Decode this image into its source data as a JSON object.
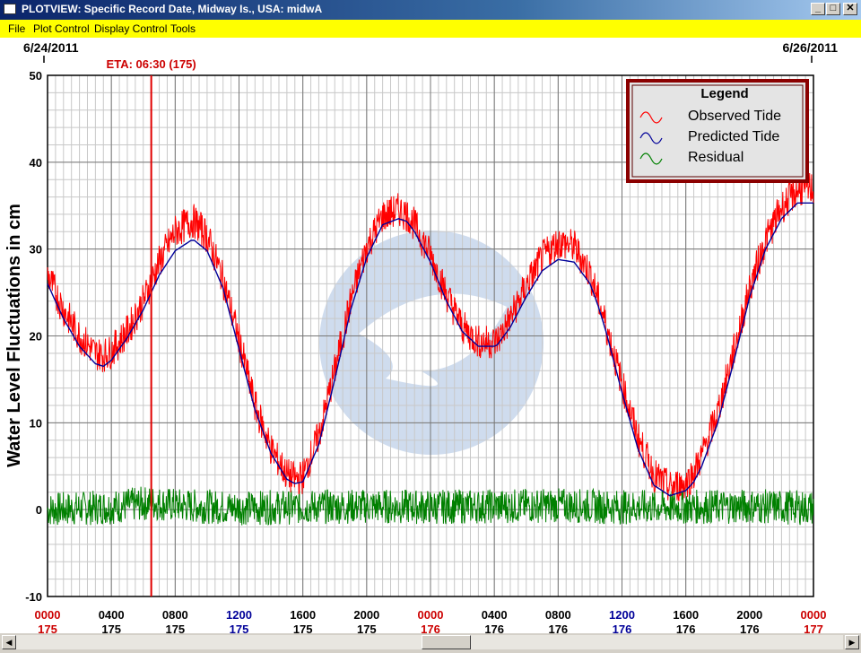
{
  "window": {
    "title": "PLOTVIEW: Specific Record Date, Midway Is., USA: midwA",
    "minimize_label": "_",
    "maximize_label": "□",
    "close_label": "✕"
  },
  "menu": {
    "items": [
      "File",
      "Plot Control",
      "Display Control",
      "Tools"
    ]
  },
  "scrollbar": {
    "left_arrow": "◀",
    "right_arrow": "▶"
  },
  "chart_data": {
    "type": "line",
    "ylabel": "Water Level Fluctuations in cm",
    "xlim": [
      0,
      48
    ],
    "ylim": [
      -10,
      50
    ],
    "y_ticks": [
      -10,
      0,
      10,
      20,
      30,
      40,
      50
    ],
    "y_minor_step": 2,
    "x_minor_step": 0.5,
    "grid": true,
    "start_date_label": "6/24/2011",
    "end_date_label": "6/26/2011",
    "eta_label": "ETA: 06:30 (175)",
    "eta_x": 6.5,
    "eta_color": "#e00000",
    "x_ticks": [
      {
        "x": 0,
        "time": "0000",
        "day": "175",
        "time_color": "#cc0000",
        "day_color": "#cc0000"
      },
      {
        "x": 4,
        "time": "0400",
        "day": "175",
        "time_color": "#000000",
        "day_color": "#000000"
      },
      {
        "x": 8,
        "time": "0800",
        "day": "175",
        "time_color": "#000000",
        "day_color": "#000000"
      },
      {
        "x": 12,
        "time": "1200",
        "day": "175",
        "time_color": "#000099",
        "day_color": "#000099"
      },
      {
        "x": 16,
        "time": "1600",
        "day": "175",
        "time_color": "#000000",
        "day_color": "#000000"
      },
      {
        "x": 20,
        "time": "2000",
        "day": "175",
        "time_color": "#000000",
        "day_color": "#000000"
      },
      {
        "x": 24,
        "time": "0000",
        "day": "176",
        "time_color": "#cc0000",
        "day_color": "#cc0000"
      },
      {
        "x": 28,
        "time": "0400",
        "day": "176",
        "time_color": "#000000",
        "day_color": "#000000"
      },
      {
        "x": 32,
        "time": "0800",
        "day": "176",
        "time_color": "#000000",
        "day_color": "#000000"
      },
      {
        "x": 36,
        "time": "1200",
        "day": "176",
        "time_color": "#000099",
        "day_color": "#000099"
      },
      {
        "x": 40,
        "time": "1600",
        "day": "176",
        "time_color": "#000000",
        "day_color": "#000000"
      },
      {
        "x": 44,
        "time": "2000",
        "day": "176",
        "time_color": "#000000",
        "day_color": "#000000"
      },
      {
        "x": 48,
        "time": "0000",
        "day": "177",
        "time_color": "#cc0000",
        "day_color": "#cc0000"
      }
    ],
    "legend": {
      "title": "Legend",
      "position": "top-right",
      "entries": [
        {
          "name": "Observed Tide",
          "color": "#ff0000"
        },
        {
          "name": "Predicted Tide",
          "color": "#000099"
        },
        {
          "name": "Residual",
          "color": "#008000"
        }
      ]
    },
    "series": [
      {
        "name": "Predicted Tide",
        "color": "#000099",
        "x": [
          0,
          1,
          2,
          3,
          3.5,
          4,
          5,
          6,
          7,
          8,
          9,
          9.2,
          10,
          11,
          12,
          13,
          14,
          15,
          15.5,
          16,
          17,
          18,
          19,
          20,
          21,
          22,
          22.5,
          23,
          24,
          25,
          26,
          27,
          28,
          28.2,
          29,
          30,
          31,
          32,
          33,
          34,
          34.5,
          35,
          36,
          37,
          38,
          39,
          40,
          40.5,
          41,
          42,
          43,
          44,
          45,
          46,
          47,
          48
        ],
        "y": [
          26,
          22,
          18.8,
          16.8,
          16.5,
          17.2,
          19.8,
          23,
          27,
          29.8,
          31,
          31,
          29.8,
          25.5,
          18.5,
          11.5,
          6.5,
          3.5,
          3,
          3.2,
          7.5,
          15,
          23,
          29,
          32.8,
          33.5,
          33.2,
          32,
          28.5,
          24,
          20.5,
          18.8,
          18.8,
          19,
          21,
          24.5,
          27.5,
          28.8,
          28.5,
          26,
          23.5,
          20.5,
          13.5,
          7,
          2.8,
          1.6,
          2.2,
          3.2,
          5,
          10,
          17,
          24.5,
          30,
          33.5,
          35.3,
          35.3
        ]
      },
      {
        "name": "Observed Tide",
        "color": "#ff0000",
        "x": [
          0,
          1,
          2,
          3,
          3.5,
          4,
          5,
          6,
          7,
          8,
          9,
          9.2,
          10,
          11,
          12,
          13,
          14,
          15,
          15.5,
          16,
          17,
          18,
          19,
          20,
          21,
          22,
          22.5,
          23,
          24,
          25,
          26,
          27,
          28,
          28.2,
          29,
          30,
          31,
          32,
          33,
          34,
          34.5,
          35,
          36,
          37,
          38,
          39,
          40,
          40.5,
          41,
          42,
          43,
          44,
          45,
          46,
          47,
          48
        ],
        "y": [
          27,
          23,
          20,
          18,
          17.8,
          18.2,
          20.5,
          24,
          28.5,
          32,
          33.2,
          33.2,
          31.5,
          26.5,
          19.5,
          12,
          7,
          4,
          3.5,
          3.8,
          8.5,
          16,
          24,
          30.2,
          33.8,
          34.5,
          34,
          32.8,
          29.3,
          24.8,
          21,
          19.3,
          19.3,
          19.5,
          22,
          25.8,
          29,
          30.8,
          30.3,
          27.2,
          24.3,
          21.2,
          14.5,
          8.3,
          4,
          2.5,
          3.1,
          4.2,
          6.2,
          11.2,
          18.2,
          25.5,
          31,
          34.8,
          36.8,
          37
        ]
      },
      {
        "name": "Residual",
        "color": "#008000",
        "x": [
          0,
          4,
          6.5,
          8,
          12,
          16,
          20,
          24,
          28,
          32,
          36,
          40,
          44,
          48
        ],
        "y": [
          0,
          0.3,
          0.8,
          0.5,
          0.2,
          0.3,
          0.4,
          0.3,
          0.4,
          0.5,
          0.3,
          0.3,
          0.4,
          0.2
        ]
      }
    ]
  }
}
